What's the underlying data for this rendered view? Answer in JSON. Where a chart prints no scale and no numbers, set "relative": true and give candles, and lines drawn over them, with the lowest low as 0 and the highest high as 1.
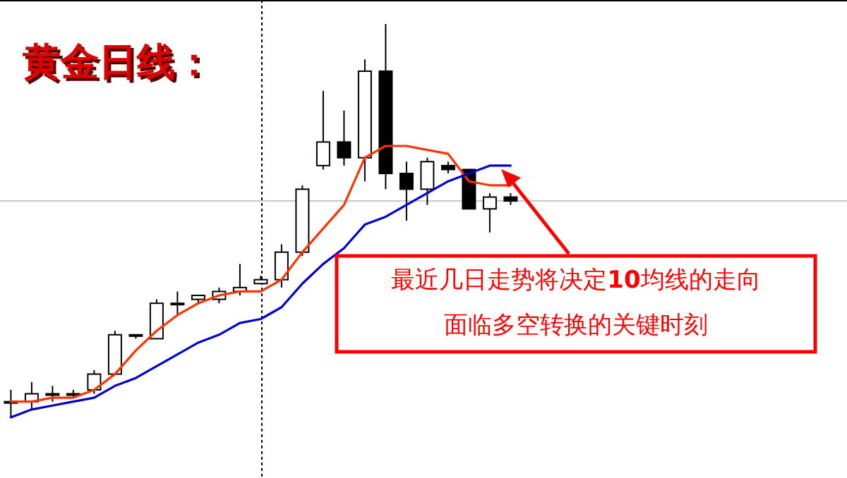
{
  "chart_data": {
    "type": "candlestick",
    "title": "黄金日线：",
    "relative": true,
    "categories": [
      null,
      null,
      null,
      null,
      null,
      null,
      null,
      null,
      null,
      null,
      null,
      null,
      null,
      null,
      null,
      null,
      null,
      null,
      null,
      null,
      null,
      null,
      null,
      null,
      null
    ],
    "ohlc": [
      [
        0.04,
        0.07,
        0,
        0.04
      ],
      [
        0.04,
        0.09,
        0.02,
        0.06
      ],
      [
        0.06,
        0.08,
        0.04,
        0.06
      ],
      [
        0.06,
        0.07,
        0.05,
        0.06
      ],
      [
        0.07,
        0.12,
        0.06,
        0.11
      ],
      [
        0.11,
        0.22,
        0.11,
        0.21
      ],
      [
        0.21,
        0.21,
        0.2,
        0.21
      ],
      [
        0.2,
        0.3,
        0.2,
        0.29
      ],
      [
        0.29,
        0.32,
        0.26,
        0.29
      ],
      [
        0.3,
        0.31,
        0.29,
        0.31
      ],
      [
        0.3,
        0.33,
        0.29,
        0.32
      ],
      [
        0.32,
        0.39,
        0.31,
        0.33
      ],
      [
        0.34,
        0.36,
        0.34,
        0.35
      ],
      [
        0.35,
        0.44,
        0.33,
        0.42
      ],
      [
        0.42,
        0.59,
        0.41,
        0.58
      ],
      [
        0.64,
        0.83,
        0.63,
        0.7
      ],
      [
        0.7,
        0.78,
        0.64,
        0.66
      ],
      [
        0.66,
        0.91,
        0.6,
        0.88
      ],
      [
        0.88,
        1,
        0.58,
        0.62
      ],
      [
        0.62,
        0.65,
        0.5,
        0.58
      ],
      [
        0.58,
        0.66,
        0.54,
        0.65
      ],
      [
        0.64,
        0.65,
        0.62,
        0.63
      ],
      [
        0.63,
        0.63,
        0.53,
        0.53
      ],
      [
        0.53,
        0.57,
        0.47,
        0.56
      ],
      [
        0.56,
        0.57,
        0.54,
        0.55
      ]
    ],
    "series": [
      {
        "type": "line",
        "color": "#ff3300",
        "values": [
          0.04,
          0.04,
          0.05,
          0.05,
          0.07,
          0.11,
          0.17,
          0.22,
          0.26,
          0.29,
          0.31,
          0.32,
          0.32,
          0.35,
          0.42,
          0.48,
          0.54,
          0.66,
          0.69,
          0.69,
          0.68,
          0.67,
          0.6,
          0.59,
          0.59
        ]
      },
      {
        "type": "line",
        "color": "#0000cc",
        "values": [
          0,
          0.02,
          0.03,
          0.04,
          0.05,
          0.08,
          0.1,
          0.13,
          0.16,
          0.19,
          0.21,
          0.24,
          0.25,
          0.28,
          0.34,
          0.39,
          0.43,
          0.49,
          0.51,
          0.54,
          0.57,
          0.6,
          0.62,
          0.64,
          0.64
        ]
      }
    ],
    "ref_lines": [
      {
        "axis": "y",
        "value": 0.55,
        "color": "#c8c8c8",
        "line_style": "solid"
      }
    ],
    "annotations": [
      "最近几日走势将决定**10**均线的走向",
      "面临多空转换的关键时刻"
    ]
  }
}
